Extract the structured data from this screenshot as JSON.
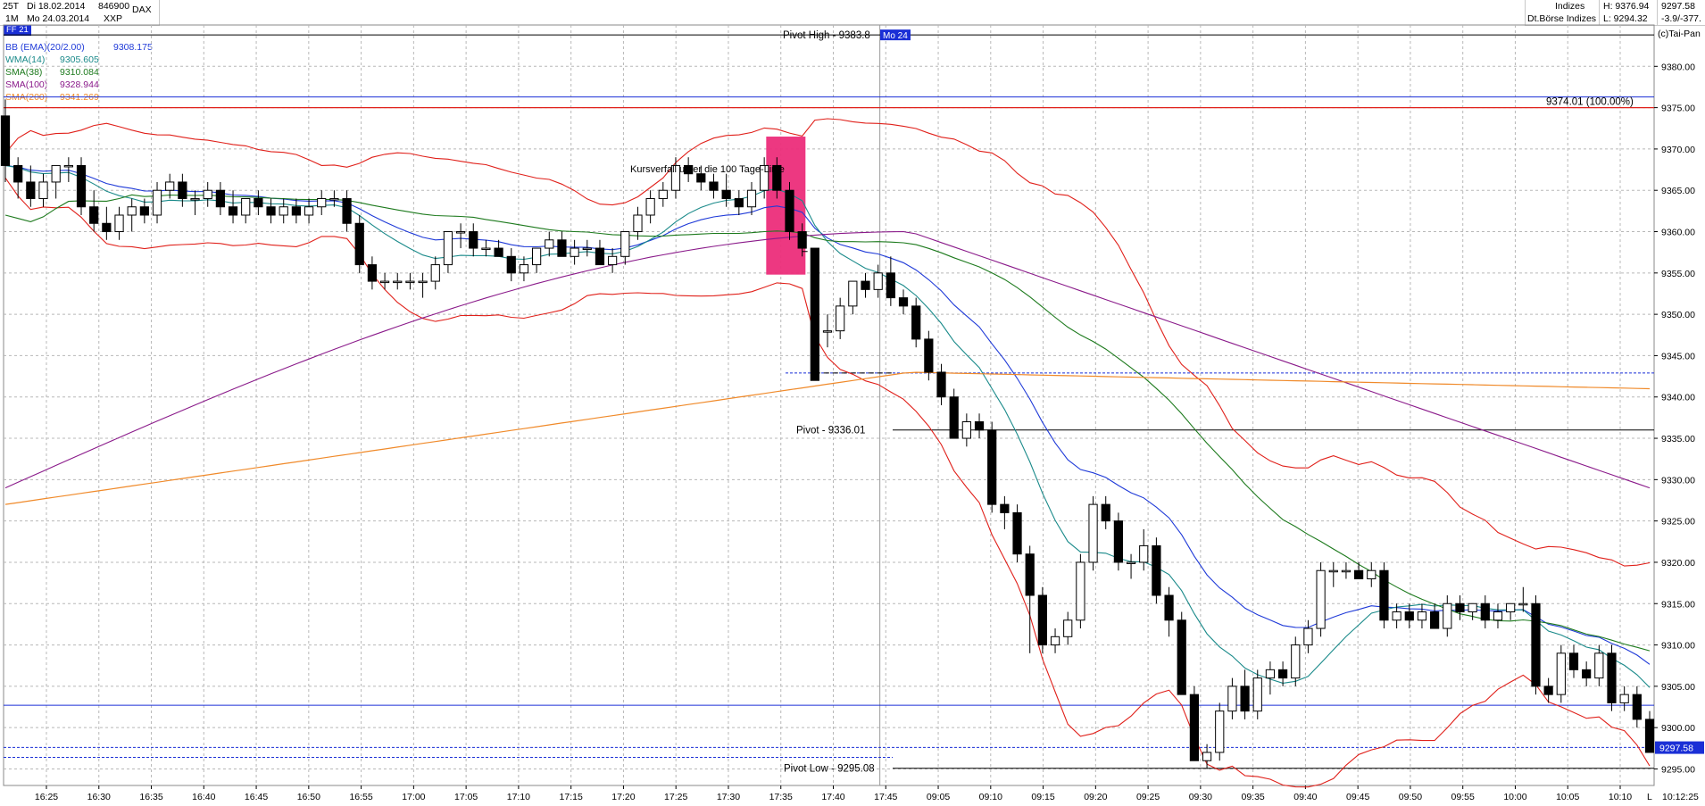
{
  "header": {
    "period": "25T",
    "interval": "1M",
    "date_from": "Di 18.02.2014",
    "date_to": "Mo 24.03.2014",
    "symbol_code": "846900",
    "exchange_code": "XXP",
    "symbol": "DAX",
    "market": "Indizes",
    "exchange": "Dt.Börse Indizes",
    "high": "H: 9376.94",
    "low": "L: 9294.32",
    "last": "9297.58",
    "change": "-3.9/-377.",
    "copyright": "(c)Tai-Pan",
    "ff_tag": "FF 21"
  },
  "legend": [
    {
      "label": "BB (EMA)(20/2.00)",
      "value": "9308.175",
      "color": "#1f3ad8"
    },
    {
      "label": "WMA(14)",
      "value": "9305.605",
      "color": "#1a8a8a"
    },
    {
      "label": "SMA(38)",
      "value": "9310.084",
      "color": "#1d7a1d"
    },
    {
      "label": "SMA(100)",
      "value": "9328.944",
      "color": "#8a1a8a"
    },
    {
      "label": "SMA(200)",
      "value": "9341.269",
      "color": "#f08a2a"
    }
  ],
  "chart_data": {
    "type": "candlestick",
    "y_axis_ticks": [
      "9380.00",
      "9375.00",
      "9370.00",
      "9365.00",
      "9360.00",
      "9355.00",
      "9350.00",
      "9345.00",
      "9340.00",
      "9335.00",
      "9330.00",
      "9325.00",
      "9320.00",
      "9315.00",
      "9310.00",
      "9305.00",
      "9300.00",
      "9295.00"
    ],
    "ylim": [
      9293,
      9385
    ],
    "x_axis_ticks": [
      "16:25",
      "16:30",
      "16:35",
      "16:40",
      "16:45",
      "16:50",
      "16:55",
      "17:00",
      "17:05",
      "17:10",
      "17:15",
      "17:20",
      "17:25",
      "17:30",
      "17:35",
      "17:40",
      "17:45",
      "09:05",
      "09:10",
      "09:15",
      "09:20",
      "09:25",
      "09:30",
      "09:35",
      "09:40",
      "09:45",
      "09:50",
      "09:55",
      "10:00",
      "10:05",
      "10:10"
    ],
    "last_time_label": "10:12:25",
    "last_price_label": "9297.58",
    "annotations": {
      "pivot_high": "Pivot High - 9383.8",
      "pivot_high_tag": "Mo 24",
      "pivot": "Pivot - 9336.01",
      "pivot_low": "Pivot Low - 9295.08",
      "fib_100": "9374.01 (100.00%)",
      "note": "Kursverfall unter die 100 Tage-Linie",
      "end_marker": "L"
    },
    "candles": [
      [
        9374,
        9376,
        9366,
        9368
      ],
      [
        9368,
        9369,
        9364,
        9366
      ],
      [
        9366,
        9368,
        9363,
        9364
      ],
      [
        9364,
        9367,
        9363,
        9366
      ],
      [
        9366,
        9368,
        9364,
        9368
      ],
      [
        9368,
        9369,
        9366,
        9368
      ],
      [
        9368,
        9369,
        9362,
        9363
      ],
      [
        9363,
        9365,
        9360,
        9361
      ],
      [
        9361,
        9363,
        9359,
        9360
      ],
      [
        9360,
        9363,
        9359,
        9362
      ],
      [
        9362,
        9364,
        9360,
        9363
      ],
      [
        9363,
        9364,
        9361,
        9362
      ],
      [
        9362,
        9366,
        9361,
        9365
      ],
      [
        9365,
        9367,
        9364,
        9366
      ],
      [
        9366,
        9367,
        9363,
        9364
      ],
      [
        9364,
        9365,
        9362,
        9364
      ],
      [
        9364,
        9366,
        9363,
        9365
      ],
      [
        9365,
        9366,
        9362,
        9363
      ],
      [
        9363,
        9365,
        9361,
        9362
      ],
      [
        9362,
        9364,
        9361,
        9364
      ],
      [
        9364,
        9365,
        9362,
        9363
      ],
      [
        9363,
        9364,
        9361,
        9362
      ],
      [
        9362,
        9364,
        9361,
        9363
      ],
      [
        9363,
        9364,
        9361,
        9362
      ],
      [
        9362,
        9364,
        9361,
        9363
      ],
      [
        9363,
        9365,
        9362,
        9364
      ],
      [
        9364,
        9365,
        9363,
        9364
      ],
      [
        9364,
        9365,
        9360,
        9361
      ],
      [
        9361,
        9362,
        9355,
        9356
      ],
      [
        9356,
        9357,
        9353,
        9354
      ],
      [
        9354,
        9355,
        9353,
        9354
      ],
      [
        9354,
        9355,
        9353,
        9354
      ],
      [
        9354,
        9355,
        9353,
        9354
      ],
      [
        9354,
        9355,
        9352,
        9354
      ],
      [
        9354,
        9357,
        9353,
        9356
      ],
      [
        9356,
        9360,
        9355,
        9360
      ],
      [
        9360,
        9361,
        9358,
        9360
      ],
      [
        9360,
        9361,
        9357,
        9358
      ],
      [
        9358,
        9359,
        9357,
        9358
      ],
      [
        9358,
        9359,
        9357,
        9357
      ],
      [
        9357,
        9358,
        9354,
        9355
      ],
      [
        9355,
        9357,
        9354,
        9356
      ],
      [
        9356,
        9358,
        9355,
        9358
      ],
      [
        9358,
        9360,
        9357,
        9359
      ],
      [
        9359,
        9360,
        9357,
        9357
      ],
      [
        9357,
        9359,
        9356,
        9358
      ],
      [
        9358,
        9359,
        9357,
        9358
      ],
      [
        9358,
        9359,
        9356,
        9356
      ],
      [
        9356,
        9358,
        9355,
        9357
      ],
      [
        9357,
        9360,
        9356,
        9360
      ],
      [
        9360,
        9363,
        9359,
        9362
      ],
      [
        9362,
        9365,
        9361,
        9364
      ],
      [
        9364,
        9366,
        9363,
        9365
      ],
      [
        9365,
        9369,
        9364,
        9368
      ],
      [
        9368,
        9369,
        9366,
        9367
      ],
      [
        9367,
        9368,
        9365,
        9366
      ],
      [
        9366,
        9367,
        9364,
        9365
      ],
      [
        9365,
        9367,
        9363,
        9364
      ],
      [
        9364,
        9365,
        9362,
        9363
      ],
      [
        9363,
        9366,
        9362,
        9365
      ],
      [
        9365,
        9369,
        9364,
        9368
      ],
      [
        9368,
        9369,
        9364,
        9365
      ],
      [
        9365,
        9366,
        9359,
        9360
      ],
      [
        9360,
        9361,
        9357,
        9358
      ],
      [
        9358,
        9358,
        9342,
        9342
      ],
      [
        9348,
        9350,
        9346,
        9348
      ],
      [
        9348,
        9352,
        9347,
        9351
      ],
      [
        9351,
        9354,
        9350,
        9354
      ],
      [
        9354,
        9355,
        9352,
        9353
      ],
      [
        9353,
        9356,
        9352,
        9355
      ],
      [
        9355,
        9357,
        9351,
        9352
      ],
      [
        9352,
        9353,
        9350,
        9351
      ],
      [
        9351,
        9352,
        9346,
        9347
      ],
      [
        9347,
        9348,
        9342,
        9343
      ],
      [
        9343,
        9344,
        9339,
        9340
      ],
      [
        9340,
        9341,
        9335,
        9335
      ],
      [
        9335,
        9338,
        9334,
        9337
      ],
      [
        9337,
        9338,
        9335,
        9336
      ],
      [
        9336,
        9337,
        9326,
        9327
      ],
      [
        9327,
        9328,
        9324,
        9326
      ],
      [
        9326,
        9327,
        9320,
        9321
      ],
      [
        9321,
        9322,
        9309,
        9316
      ],
      [
        9316,
        9317,
        9309,
        9310
      ],
      [
        9310,
        9312,
        9309,
        9311
      ],
      [
        9311,
        9314,
        9310,
        9313
      ],
      [
        9313,
        9321,
        9312,
        9320
      ],
      [
        9320,
        9328,
        9319,
        9327
      ],
      [
        9327,
        9328,
        9324,
        9325
      ],
      [
        9325,
        9326,
        9319,
        9320
      ],
      [
        9320,
        9321,
        9318,
        9320
      ],
      [
        9320,
        9324,
        9319,
        9322
      ],
      [
        9322,
        9323,
        9315,
        9316
      ],
      [
        9316,
        9317,
        9311,
        9313
      ],
      [
        9313,
        9314,
        9304,
        9304
      ],
      [
        9304,
        9305,
        9296,
        9296
      ],
      [
        9296,
        9298,
        9295,
        9297
      ],
      [
        9297,
        9303,
        9296,
        9302
      ],
      [
        9302,
        9306,
        9301,
        9305
      ],
      [
        9305,
        9307,
        9301,
        9302
      ],
      [
        9302,
        9307,
        9301,
        9306
      ],
      [
        9306,
        9308,
        9304,
        9307
      ],
      [
        9307,
        9308,
        9305,
        9306
      ],
      [
        9306,
        9311,
        9305,
        9310
      ],
      [
        9310,
        9313,
        9309,
        9312
      ],
      [
        9312,
        9320,
        9311,
        9319
      ],
      [
        9319,
        9320,
        9317,
        9319
      ],
      [
        9319,
        9320,
        9318,
        9319
      ],
      [
        9319,
        9320,
        9318,
        9318
      ],
      [
        9318,
        9320,
        9317,
        9319
      ],
      [
        9319,
        9320,
        9312,
        9313
      ],
      [
        9313,
        9315,
        9312,
        9314
      ],
      [
        9314,
        9315,
        9312,
        9313
      ],
      [
        9313,
        9315,
        9312,
        9314
      ],
      [
        9314,
        9315,
        9312,
        9312
      ],
      [
        9312,
        9316,
        9311,
        9315
      ],
      [
        9315,
        9316,
        9313,
        9314
      ],
      [
        9314,
        9315,
        9313,
        9315
      ],
      [
        9315,
        9316,
        9312,
        9313
      ],
      [
        9313,
        9315,
        9312,
        9314
      ],
      [
        9314,
        9315,
        9313,
        9315
      ],
      [
        9315,
        9317,
        9314,
        9315
      ],
      [
        9315,
        9316,
        9304,
        9305
      ],
      [
        9305,
        9306,
        9303,
        9304
      ],
      [
        9304,
        9310,
        9303,
        9309
      ],
      [
        9309,
        9310,
        9306,
        9307
      ],
      [
        9307,
        9308,
        9305,
        9306
      ],
      [
        9306,
        9310,
        9305,
        9309
      ],
      [
        9309,
        9310,
        9302,
        9303
      ],
      [
        9303,
        9305,
        9302,
        9304
      ],
      [
        9304,
        9305,
        9300,
        9301
      ],
      [
        9301,
        9302,
        9297,
        9297
      ]
    ]
  }
}
